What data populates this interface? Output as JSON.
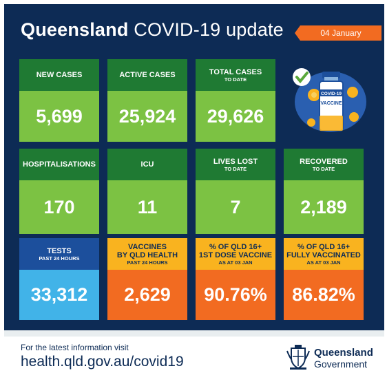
{
  "header": {
    "title_bold": "Queensland",
    "title_rest": "COVID-19 update",
    "date": "04 January"
  },
  "tiles": {
    "new_cases": {
      "label": "NEW CASES",
      "sub": "",
      "value": "5,699"
    },
    "active_cases": {
      "label": "ACTIVE CASES",
      "sub": "",
      "value": "25,924"
    },
    "total_cases": {
      "label": "TOTAL CASES",
      "sub": "TO DATE",
      "value": "29,626"
    },
    "hospitalisations": {
      "label": "HOSPITALISATIONS",
      "sub": "",
      "value": "170"
    },
    "icu": {
      "label": "ICU",
      "sub": "",
      "value": "11"
    },
    "lives_lost": {
      "label": "LIVES LOST",
      "sub": "TO DATE",
      "value": "7"
    },
    "recovered": {
      "label": "RECOVERED",
      "sub": "TO DATE",
      "value": "2,189"
    },
    "tests": {
      "label": "TESTS",
      "sub": "PAST 24 HOURS",
      "value": "33,312"
    },
    "vaccines": {
      "label": "VACCINES",
      "label2": "BY QLD HEALTH",
      "sub": "PAST 24 HOURS",
      "value": "2,629"
    },
    "first_dose": {
      "label": "% OF QLD 16+",
      "label2": "1ST DOSE VACCINE",
      "sub": "AS AT 03 JAN",
      "value": "90.76%"
    },
    "fully_vaccinated": {
      "label": "% OF QLD 16+",
      "label2": "FULLY VACCINATED",
      "sub": "AS AT 03 JAN",
      "value": "86.82%"
    }
  },
  "vaccine_graphic": {
    "vial_label_top": "COVID-19",
    "vial_label": "VACCINE",
    "icon": "vaccine-vial-icon"
  },
  "footer": {
    "info_text": "For the latest information visit",
    "url": "health.qld.gov.au/covid19",
    "logo_line1": "Queensland",
    "logo_line2": "Government"
  },
  "colors": {
    "navy": "#0d2b55",
    "green_dark": "#1f7a33",
    "green_light": "#7cc243",
    "blue_dark": "#1c4f9c",
    "blue_light": "#41b3e8",
    "yellow": "#f9b31f",
    "orange": "#f26b21"
  }
}
